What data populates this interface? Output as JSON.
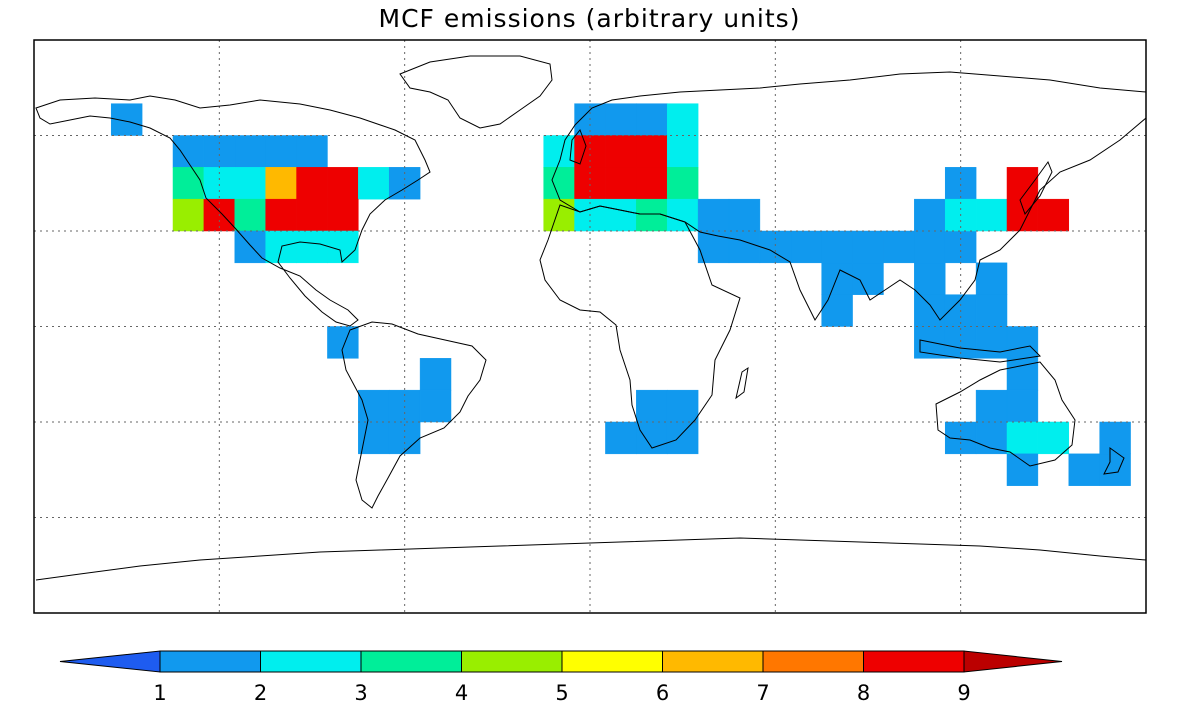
{
  "title": "MCF emissions (arbitrary units)",
  "map": {
    "projection": "equirectangular",
    "grid": "dashed",
    "lon_lines": [
      -120,
      -60,
      0,
      60,
      120
    ],
    "lat_lines": [
      -60,
      -30,
      0,
      30,
      60
    ],
    "cell_size_deg": 10,
    "emission_cells": [
      {
        "lon": -150,
        "lat": 65,
        "value": 1.5
      },
      {
        "lon": -130,
        "lat": 55,
        "value": 1.5
      },
      {
        "lon": -120,
        "lat": 55,
        "value": 1.5
      },
      {
        "lon": -110,
        "lat": 55,
        "value": 1.5
      },
      {
        "lon": -100,
        "lat": 55,
        "value": 1.5
      },
      {
        "lon": -90,
        "lat": 55,
        "value": 1.5
      },
      {
        "lon": -130,
        "lat": 45,
        "value": 3.5
      },
      {
        "lon": -120,
        "lat": 45,
        "value": 2.5
      },
      {
        "lon": -110,
        "lat": 45,
        "value": 2.5
      },
      {
        "lon": -100,
        "lat": 45,
        "value": 6.5
      },
      {
        "lon": -90,
        "lat": 45,
        "value": 8.5
      },
      {
        "lon": -80,
        "lat": 45,
        "value": 8.5
      },
      {
        "lon": -70,
        "lat": 45,
        "value": 2.5
      },
      {
        "lon": -60,
        "lat": 45,
        "value": 1.5
      },
      {
        "lon": -130,
        "lat": 35,
        "value": 4.5
      },
      {
        "lon": -120,
        "lat": 35,
        "value": 8.5
      },
      {
        "lon": -110,
        "lat": 35,
        "value": 3.5
      },
      {
        "lon": -100,
        "lat": 35,
        "value": 8.5
      },
      {
        "lon": -90,
        "lat": 35,
        "value": 8.5
      },
      {
        "lon": -80,
        "lat": 35,
        "value": 8.5
      },
      {
        "lon": -110,
        "lat": 25,
        "value": 1.5
      },
      {
        "lon": -100,
        "lat": 25,
        "value": 2.5
      },
      {
        "lon": -90,
        "lat": 25,
        "value": 2.5
      },
      {
        "lon": -80,
        "lat": 25,
        "value": 2.5
      },
      {
        "lon": -80,
        "lat": -5,
        "value": 1.5
      },
      {
        "lon": -50,
        "lat": -15,
        "value": 1.5
      },
      {
        "lon": -70,
        "lat": -25,
        "value": 1.5
      },
      {
        "lon": -60,
        "lat": -25,
        "value": 1.5
      },
      {
        "lon": -50,
        "lat": -25,
        "value": 1.5
      },
      {
        "lon": -70,
        "lat": -35,
        "value": 1.5
      },
      {
        "lon": -60,
        "lat": -35,
        "value": 1.5
      },
      {
        "lon": 0,
        "lat": 65,
        "value": 1.5
      },
      {
        "lon": 10,
        "lat": 65,
        "value": 1.5
      },
      {
        "lon": 20,
        "lat": 65,
        "value": 1.5
      },
      {
        "lon": 30,
        "lat": 65,
        "value": 2.5
      },
      {
        "lon": -10,
        "lat": 55,
        "value": 2.5
      },
      {
        "lon": 0,
        "lat": 55,
        "value": 8.5
      },
      {
        "lon": 10,
        "lat": 55,
        "value": 8.5
      },
      {
        "lon": 20,
        "lat": 55,
        "value": 8.5
      },
      {
        "lon": 30,
        "lat": 55,
        "value": 2.5
      },
      {
        "lon": -10,
        "lat": 45,
        "value": 3.5
      },
      {
        "lon": 0,
        "lat": 45,
        "value": 8.5
      },
      {
        "lon": 10,
        "lat": 45,
        "value": 8.5
      },
      {
        "lon": 20,
        "lat": 45,
        "value": 8.5
      },
      {
        "lon": 30,
        "lat": 45,
        "value": 3.5
      },
      {
        "lon": -10,
        "lat": 35,
        "value": 4.5
      },
      {
        "lon": 0,
        "lat": 35,
        "value": 2.5
      },
      {
        "lon": 10,
        "lat": 35,
        "value": 2.5
      },
      {
        "lon": 20,
        "lat": 35,
        "value": 3.5
      },
      {
        "lon": 30,
        "lat": 35,
        "value": 2.5
      },
      {
        "lon": 40,
        "lat": 35,
        "value": 1.5
      },
      {
        "lon": 50,
        "lat": 35,
        "value": 1.5
      },
      {
        "lon": 40,
        "lat": 25,
        "value": 1.5
      },
      {
        "lon": 50,
        "lat": 25,
        "value": 1.5
      },
      {
        "lon": 60,
        "lat": 25,
        "value": 1.5
      },
      {
        "lon": 70,
        "lat": 25,
        "value": 1.5
      },
      {
        "lon": 80,
        "lat": 25,
        "value": 1.5
      },
      {
        "lon": 90,
        "lat": 25,
        "value": 1.5
      },
      {
        "lon": 100,
        "lat": 25,
        "value": 1.5
      },
      {
        "lon": 110,
        "lat": 25,
        "value": 1.5
      },
      {
        "lon": 120,
        "lat": 25,
        "value": 1.5
      },
      {
        "lon": 120,
        "lat": 45,
        "value": 1.5
      },
      {
        "lon": 110,
        "lat": 35,
        "value": 1.5
      },
      {
        "lon": 120,
        "lat": 35,
        "value": 2.5
      },
      {
        "lon": 130,
        "lat": 35,
        "value": 2.5
      },
      {
        "lon": 140,
        "lat": 35,
        "value": 8.5
      },
      {
        "lon": 150,
        "lat": 35,
        "value": 8.5
      },
      {
        "lon": 140,
        "lat": 45,
        "value": 8.5
      },
      {
        "lon": 80,
        "lat": 15,
        "value": 1.5
      },
      {
        "lon": 90,
        "lat": 15,
        "value": 1.5
      },
      {
        "lon": 110,
        "lat": 15,
        "value": 1.5
      },
      {
        "lon": 130,
        "lat": 15,
        "value": 1.5
      },
      {
        "lon": 80,
        "lat": 5,
        "value": 1.5
      },
      {
        "lon": 110,
        "lat": 5,
        "value": 1.5
      },
      {
        "lon": 120,
        "lat": 5,
        "value": 1.5
      },
      {
        "lon": 130,
        "lat": 5,
        "value": 1.5
      },
      {
        "lon": 110,
        "lat": -5,
        "value": 1.5
      },
      {
        "lon": 120,
        "lat": -5,
        "value": 1.5
      },
      {
        "lon": 130,
        "lat": -5,
        "value": 1.5
      },
      {
        "lon": 140,
        "lat": -5,
        "value": 1.5
      },
      {
        "lon": 140,
        "lat": -15,
        "value": 1.5
      },
      {
        "lon": 130,
        "lat": -25,
        "value": 1.5
      },
      {
        "lon": 140,
        "lat": -25,
        "value": 1.5
      },
      {
        "lon": 120,
        "lat": -35,
        "value": 1.5
      },
      {
        "lon": 130,
        "lat": -35,
        "value": 1.5
      },
      {
        "lon": 140,
        "lat": -35,
        "value": 2.5
      },
      {
        "lon": 150,
        "lat": -35,
        "value": 2.5
      },
      {
        "lon": 170,
        "lat": -35,
        "value": 1.5
      },
      {
        "lon": 140,
        "lat": -45,
        "value": 1.5
      },
      {
        "lon": 160,
        "lat": -45,
        "value": 1.5
      },
      {
        "lon": 170,
        "lat": -45,
        "value": 1.5
      },
      {
        "lon": 20,
        "lat": -25,
        "value": 1.5
      },
      {
        "lon": 30,
        "lat": -25,
        "value": 1.5
      },
      {
        "lon": 10,
        "lat": -35,
        "value": 1.5
      },
      {
        "lon": 20,
        "lat": -35,
        "value": 1.5
      },
      {
        "lon": 30,
        "lat": -35,
        "value": 1.5
      }
    ]
  },
  "colorbar": {
    "labels": [
      "1",
      "2",
      "3",
      "4",
      "5",
      "6",
      "7",
      "8",
      "9"
    ],
    "colors": {
      "below": "#1e5cf0",
      "bins": [
        "#1199ee",
        "#00eeee",
        "#00ee99",
        "#99ee00",
        "#ffff00",
        "#ffb900",
        "#ff7700",
        "#ee0000"
      ],
      "above": "#bb0000"
    }
  },
  "land_color": "#ffffff",
  "coast_color": "#000000"
}
